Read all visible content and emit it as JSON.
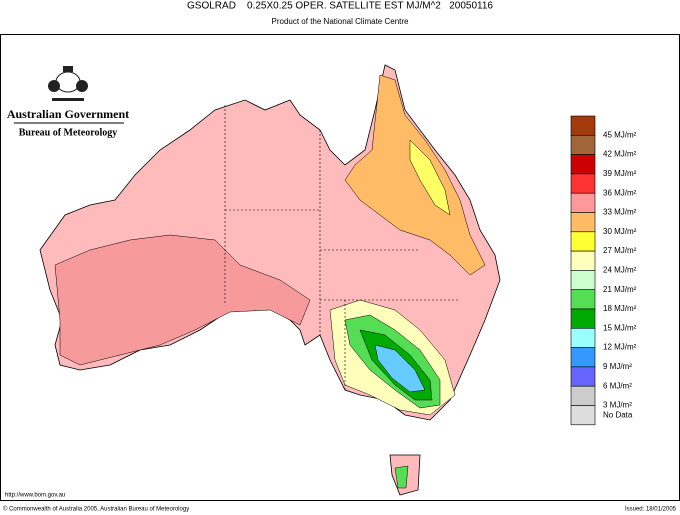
{
  "header": {
    "title": "GSOLRAD    0.25X0.25 OPER. SATELLITE EST MJ/M^2   20050116",
    "subtitle": "Product of the National Climate Centre"
  },
  "logo": {
    "line1": "Australian Government",
    "line2": "Bureau of Meteorology"
  },
  "legend": {
    "colors": [
      "#a33a0c",
      "#a0663a",
      "#cc0000",
      "#ff3333",
      "#ff9999",
      "#ffbb66",
      "#ffff33",
      "#ffffbb",
      "#ccffcc",
      "#55dd55",
      "#00aa00",
      "#99ffff",
      "#3399ff",
      "#6666ff",
      "#cccccc",
      "#dddddd"
    ],
    "labels": [
      "45 MJ/m²",
      "42 MJ/m²",
      "39 MJ/m²",
      "36 MJ/m²",
      "33 MJ/m²",
      "30 MJ/m²",
      "27 MJ/m²",
      "24 MJ/m²",
      "21 MJ/m²",
      "18 MJ/m²",
      "15 MJ/m²",
      "12 MJ/m²",
      "9 MJ/m²",
      "6 MJ/m²",
      "3 MJ/m²"
    ],
    "no_data": "No Data"
  },
  "footer": {
    "url": "http://www.bom.gov.au",
    "copyright": "© Commonwealth of Australia 2005, Australian Bureau of Meteorology",
    "issued": "Issued: 18/01/2005"
  }
}
